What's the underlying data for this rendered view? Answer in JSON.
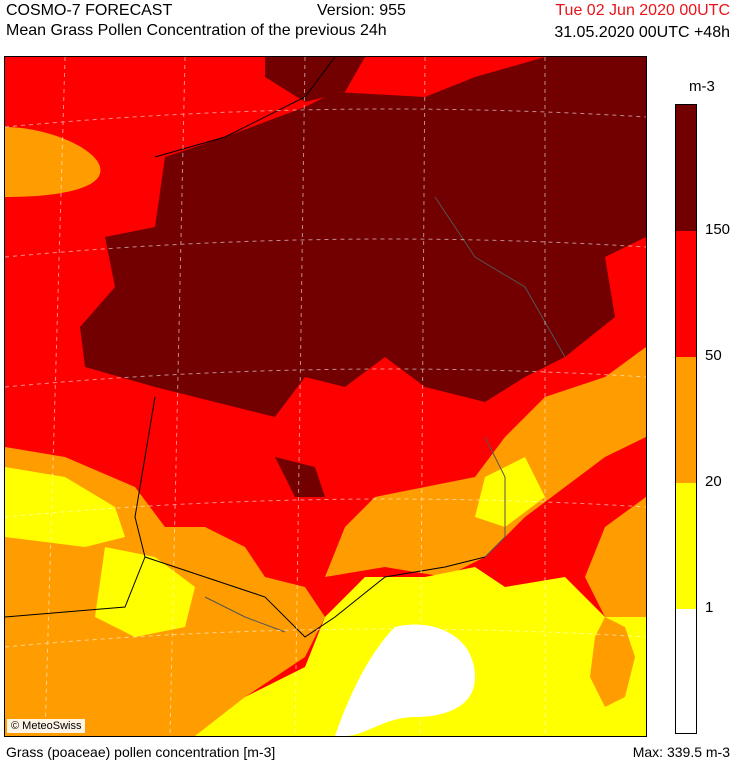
{
  "header": {
    "model": "COSMO-7 FORECAST",
    "version": "Version: 955",
    "subtitle": "Mean Grass Pollen Concentration of the previous 24h",
    "valid_date": "Tue 02 Jun 2020 00UTC",
    "run": "31.05.2020 00UTC +48h"
  },
  "map": {
    "credit": "© MeteoSwiss",
    "region": "France, northern Spain, Corsica"
  },
  "legend": {
    "unit": "m-3",
    "ticks": [
      "150",
      "50",
      "20",
      "1"
    ],
    "classes": [
      {
        "range": "> 150",
        "color": "#720000"
      },
      {
        "range": "50-150",
        "color": "#ff0000"
      },
      {
        "range": "20-50",
        "color": "#ff9c00"
      },
      {
        "range": "1-20",
        "color": "#ffff00"
      },
      {
        "range": "< 1",
        "color": "#ffffff"
      }
    ]
  },
  "footer": {
    "left": "Grass (poaceae) pollen concentration [m-3]",
    "right": "Max:  339.5 m-3"
  }
}
